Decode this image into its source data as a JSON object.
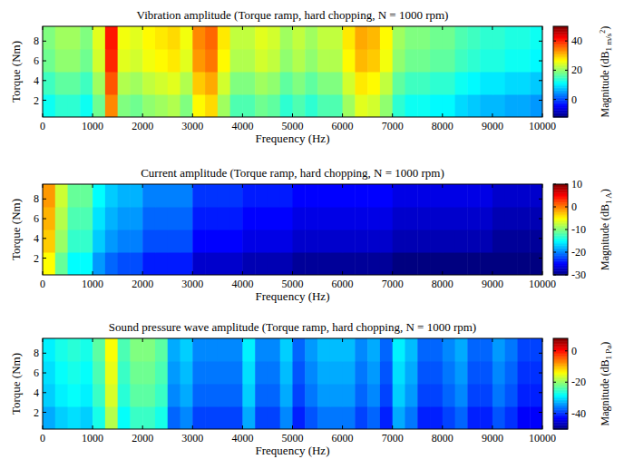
{
  "chart_data": [
    {
      "type": "heatmap",
      "title": "Vibration amplitude (Torque ramp, hard chopping, N = 1000 rpm)",
      "x_label": "Frequency (Hz)",
      "y_label": "Torque (Nm)",
      "xlim": [
        0,
        10000
      ],
      "xticks": [
        0,
        1000,
        2000,
        3000,
        4000,
        5000,
        6000,
        7000,
        8000,
        9000,
        10000
      ],
      "ylim": [
        0.3,
        9.5
      ],
      "yticks": [
        2,
        4,
        6,
        8
      ],
      "x_edges": [
        0,
        250,
        500,
        750,
        1000,
        1250,
        1500,
        1750,
        2000,
        2250,
        2500,
        2750,
        3000,
        3250,
        3500,
        3750,
        4000,
        4250,
        4500,
        4750,
        5000,
        5250,
        5500,
        5750,
        6000,
        6250,
        6500,
        6750,
        7000,
        7250,
        7500,
        7750,
        8000,
        8250,
        8500,
        8750,
        9000,
        9250,
        9500,
        9750,
        10000
      ],
      "y_edges": [
        0.3,
        2.6,
        4.9,
        7.2,
        9.5
      ],
      "cells": [
        [
          12,
          14,
          14,
          12,
          18,
          34,
          19,
          18,
          20,
          21,
          22,
          19,
          27,
          29,
          21,
          16,
          16,
          18,
          17,
          14,
          16,
          14,
          16,
          16,
          21,
          25,
          24,
          20,
          14,
          12,
          12,
          11,
          11,
          9,
          8,
          7,
          7,
          6,
          6,
          5
        ],
        [
          15,
          17,
          17,
          15,
          21,
          37,
          22,
          21,
          23,
          24,
          25,
          22,
          30,
          32,
          24,
          19,
          19,
          21,
          20,
          17,
          19,
          17,
          19,
          19,
          24,
          28,
          27,
          23,
          17,
          15,
          15,
          14,
          14,
          12,
          11,
          10,
          10,
          9,
          9,
          8
        ],
        [
          18,
          20,
          20,
          18,
          24,
          40,
          25,
          24,
          26,
          27,
          28,
          25,
          33,
          35,
          27,
          22,
          22,
          24,
          23,
          20,
          22,
          20,
          22,
          22,
          27,
          31,
          30,
          26,
          20,
          18,
          18,
          17,
          17,
          15,
          14,
          13,
          13,
          12,
          12,
          11
        ],
        [
          19,
          21,
          21,
          19,
          25,
          41,
          26,
          25,
          27,
          28,
          29,
          26,
          34,
          36,
          28,
          23,
          23,
          25,
          24,
          21,
          23,
          21,
          23,
          23,
          28,
          32,
          31,
          27,
          21,
          19,
          19,
          18,
          18,
          16,
          15,
          14,
          14,
          13,
          13,
          12
        ]
      ],
      "color_range": [
        -12,
        50
      ],
      "color_ticks": [
        0,
        20,
        40
      ],
      "colorbar_label": {
        "text": "Magnitude (dB",
        "sub": "1 m/s",
        "sup": "2",
        "end": ")"
      }
    },
    {
      "type": "heatmap",
      "title": "Current amplitude (Torque ramp, hard chopping, N = 1000 rpm)",
      "x_label": "Frequency (Hz)",
      "y_label": "Torque (Nm)",
      "xlim": [
        0,
        10000
      ],
      "xticks": [
        0,
        1000,
        2000,
        3000,
        4000,
        5000,
        6000,
        7000,
        8000,
        9000,
        10000
      ],
      "ylim": [
        0.3,
        9.5
      ],
      "yticks": [
        2,
        4,
        6,
        8
      ],
      "x_edges": [
        0,
        250,
        500,
        750,
        1000,
        1250,
        1500,
        1750,
        2000,
        2250,
        2500,
        2750,
        3000,
        3250,
        3500,
        3750,
        4000,
        4250,
        4500,
        4750,
        5000,
        5250,
        5500,
        5750,
        6000,
        6250,
        6500,
        6750,
        7000,
        7250,
        7500,
        7750,
        8000,
        8250,
        8500,
        8750,
        9000,
        9250,
        9500,
        9750,
        10000
      ],
      "y_edges": [
        0.3,
        2.6,
        4.9,
        7.2,
        9.5
      ],
      "cells": [
        [
          -5,
          -11,
          -15,
          -15,
          -19,
          -21,
          -22,
          -22,
          -24,
          -24,
          -24,
          -24,
          -27,
          -27,
          -27,
          -27,
          -28,
          -28,
          -28,
          -28,
          -29,
          -29,
          -29,
          -29,
          -29,
          -29,
          -29,
          -29,
          -30,
          -30,
          -30,
          -30,
          -30,
          -30,
          -30,
          -30,
          -30,
          -30,
          -30,
          -30
        ],
        [
          -3,
          -9,
          -13,
          -13,
          -17,
          -19,
          -20,
          -20,
          -22,
          -22,
          -22,
          -22,
          -25,
          -25,
          -25,
          -25,
          -26,
          -26,
          -26,
          -26,
          -27,
          -27,
          -27,
          -27,
          -27,
          -27,
          -27,
          -27,
          -28,
          -28,
          -28,
          -28,
          -28,
          -28,
          -28,
          -28,
          -29,
          -29,
          -29,
          -29
        ],
        [
          -2,
          -8,
          -12,
          -12,
          -16,
          -18,
          -19,
          -19,
          -21,
          -21,
          -21,
          -21,
          -24,
          -24,
          -24,
          -24,
          -25,
          -25,
          -25,
          -25,
          -26,
          -26,
          -26,
          -26,
          -26,
          -26,
          -26,
          -26,
          -27,
          -27,
          -27,
          -27,
          -27,
          -27,
          -27,
          -27,
          -28,
          -28,
          -28,
          -28
        ],
        [
          -1,
          -7,
          -11,
          -11,
          -15,
          -17,
          -18,
          -18,
          -20,
          -20,
          -20,
          -20,
          -23,
          -23,
          -23,
          -23,
          -24,
          -24,
          -24,
          -24,
          -25,
          -25,
          -25,
          -25,
          -25,
          -25,
          -25,
          -25,
          -26,
          -26,
          -26,
          -26,
          -26,
          -26,
          -26,
          -26,
          -27,
          -27,
          -27,
          -27
        ]
      ],
      "color_range": [
        -30,
        10
      ],
      "color_ticks": [
        10,
        0,
        -10,
        -20,
        -30
      ],
      "colorbar_label": {
        "text": "Magnitude (dB",
        "sub": "1 A",
        "end": ")"
      }
    },
    {
      "type": "heatmap",
      "title": "Sound pressure wave amplitude (Torque ramp, hard chopping, N = 1000 rpm)",
      "x_label": "Frequency (Hz)",
      "y_label": "Torque (Nm)",
      "xlim": [
        0,
        10000
      ],
      "xticks": [
        0,
        1000,
        2000,
        3000,
        4000,
        5000,
        6000,
        7000,
        8000,
        9000,
        10000
      ],
      "ylim": [
        0.3,
        9.5
      ],
      "yticks": [
        2,
        4,
        6,
        8
      ],
      "x_edges": [
        0,
        250,
        500,
        750,
        1000,
        1250,
        1500,
        1750,
        2000,
        2250,
        2500,
        2750,
        3000,
        3250,
        3500,
        3750,
        4000,
        4250,
        4500,
        4750,
        5000,
        5250,
        5500,
        5750,
        6000,
        6250,
        6500,
        6750,
        7000,
        7250,
        7500,
        7750,
        8000,
        8250,
        8500,
        8750,
        9000,
        9250,
        9500,
        9750,
        10000
      ],
      "y_edges": [
        0.3,
        2.6,
        4.9,
        7.2,
        9.5
      ],
      "cells": [
        [
          -33,
          -31,
          -30,
          -31,
          -27,
          -18,
          -28,
          -25,
          -25,
          -27,
          -37,
          -35,
          -39,
          -39,
          -39,
          -39,
          -33,
          -39,
          -39,
          -35,
          -41,
          -38,
          -36,
          -36,
          -36,
          -39,
          -37,
          -41,
          -33,
          -36,
          -41,
          -41,
          -39,
          -37,
          -41,
          -41,
          -38,
          -40,
          -43,
          -43
        ],
        [
          -31,
          -29,
          -28,
          -29,
          -25,
          -16,
          -26,
          -23,
          -23,
          -25,
          -35,
          -33,
          -37,
          -37,
          -37,
          -37,
          -31,
          -37,
          -37,
          -33,
          -39,
          -36,
          -34,
          -34,
          -34,
          -37,
          -35,
          -39,
          -31,
          -34,
          -39,
          -39,
          -37,
          -35,
          -39,
          -39,
          -36,
          -38,
          -41,
          -41
        ],
        [
          -30,
          -28,
          -27,
          -28,
          -24,
          -15,
          -25,
          -22,
          -22,
          -24,
          -34,
          -32,
          -36,
          -36,
          -36,
          -36,
          -30,
          -36,
          -36,
          -32,
          -38,
          -35,
          -33,
          -33,
          -33,
          -36,
          -34,
          -38,
          -30,
          -33,
          -38,
          -38,
          -36,
          -34,
          -38,
          -38,
          -35,
          -37,
          -40,
          -40
        ],
        [
          -29,
          -27,
          -26,
          -27,
          -23,
          -14,
          -24,
          -21,
          -21,
          -23,
          -33,
          -31,
          -35,
          -35,
          -35,
          -35,
          -29,
          -35,
          -35,
          -31,
          -37,
          -34,
          -32,
          -32,
          -32,
          -35,
          -33,
          -37,
          -29,
          -32,
          -37,
          -37,
          -35,
          -33,
          -37,
          -37,
          -34,
          -36,
          -39,
          -39
        ]
      ],
      "color_range": [
        -50,
        8
      ],
      "color_ticks": [
        0,
        -20,
        -40
      ],
      "colorbar_label": {
        "text": "Magnitude (dB",
        "sub": "1 Pa",
        "end": ")"
      }
    }
  ]
}
